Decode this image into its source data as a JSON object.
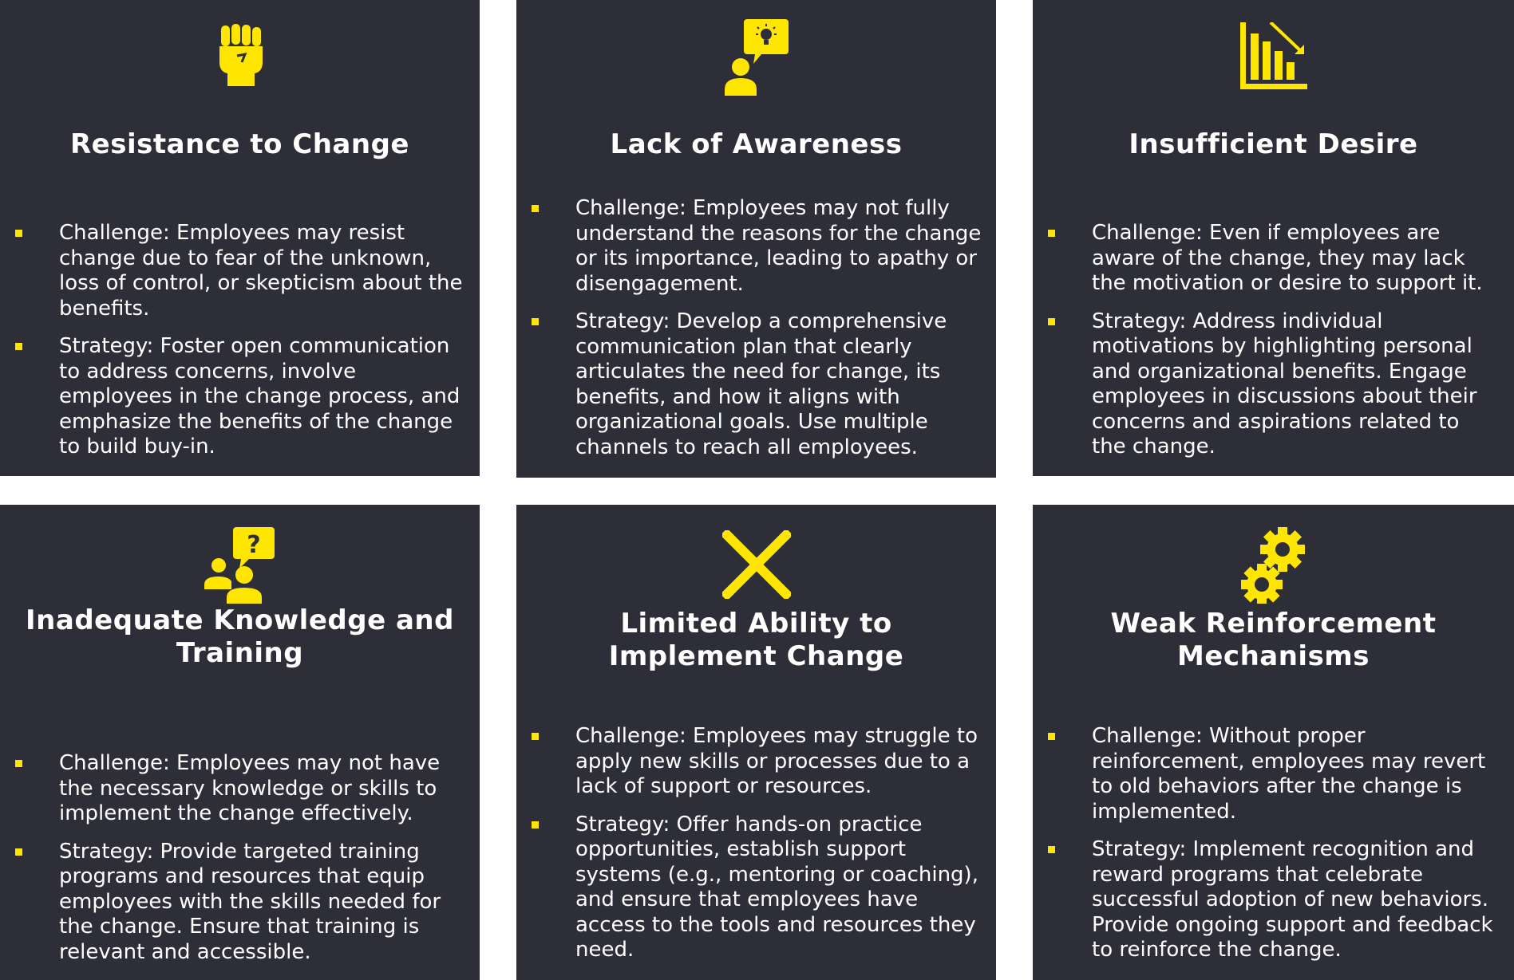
{
  "accent_color": "#ffe600",
  "card_color": "#2e2e38",
  "cards": [
    {
      "icon": "raised-fist-icon",
      "title": "Resistance to Change",
      "challenge": "Challenge: Employees may resist change due to fear of the unknown, loss of control, or skepticism about the benefits.",
      "strategy": "Strategy: Foster open communication to address concerns, involve employees in the change process, and emphasize the benefits of the change to build buy-in."
    },
    {
      "icon": "person-lightbulb-icon",
      "title": "Lack of Awareness",
      "challenge": "Challenge: Employees may not fully understand the reasons for the change or its importance, leading to apathy or disengagement.",
      "strategy": "Strategy: Develop a comprehensive communication plan that clearly articulates the need for change, its benefits, and how it aligns with organizational goals. Use multiple channels to reach all employees."
    },
    {
      "icon": "declining-chart-icon",
      "title": "Insufficient Desire",
      "challenge": "Challenge: Even if employees are aware of the change, they may lack the motivation or desire to support it.",
      "strategy": "Strategy: Address individual motivations by highlighting personal and organizational benefits. Engage employees in discussions about their concerns and aspirations related to the change."
    },
    {
      "icon": "people-question-icon",
      "title": "Inadequate Knowledge and Training",
      "challenge": "Challenge: Employees may not have the necessary knowledge or skills to implement the change effectively.",
      "strategy": "Strategy: Provide targeted training programs and resources that equip employees with the skills needed for the change. Ensure that training is relevant and accessible."
    },
    {
      "icon": "cross-icon",
      "title": "Limited Ability to Implement Change",
      "challenge": "Challenge: Employees may struggle to apply new skills or processes due to a lack of support or resources.",
      "strategy": "Strategy: Offer hands-on practice opportunities, establish support systems (e.g., mentoring or coaching), and ensure that employees have access to the tools and resources they need."
    },
    {
      "icon": "gears-icon",
      "title": "Weak Reinforcement Mechanisms",
      "challenge": "Challenge: Without proper reinforcement, employees may revert to old behaviors after the change is implemented.",
      "strategy": "Strategy: Implement recognition and reward programs that celebrate successful adoption of new behaviors. Provide ongoing support and feedback to reinforce the change."
    }
  ]
}
